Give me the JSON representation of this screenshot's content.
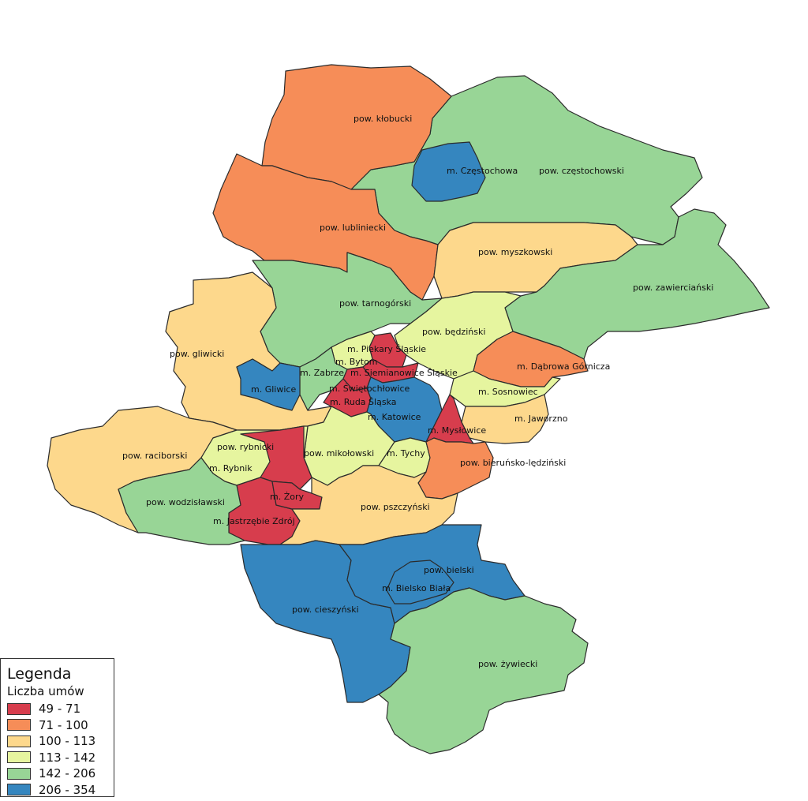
{
  "colors": {
    "c1": "#d73d4d",
    "c2": "#f68d58",
    "c3": "#fdd88c",
    "c4": "#e6f59f",
    "c5": "#98d596",
    "c6": "#3586bf"
  },
  "regions": [
    {
      "name": "pow. kłobucki",
      "cls": "c2"
    },
    {
      "name": "pow. lubliniecki",
      "cls": "c2"
    },
    {
      "name": "pow. częstochowski",
      "cls": "c5"
    },
    {
      "name": "m. Częstochowa",
      "cls": "c6"
    },
    {
      "name": "pow. myszkowski",
      "cls": "c3"
    },
    {
      "name": "pow. zawierciański",
      "cls": "c5"
    },
    {
      "name": "pow. tarnogórski",
      "cls": "c5"
    },
    {
      "name": "pow. będziński",
      "cls": "c4"
    },
    {
      "name": "pow. gliwicki",
      "cls": "c3"
    },
    {
      "name": "m. Piekary Śląskie",
      "cls": "c1"
    },
    {
      "name": "m. Bytom",
      "cls": "c4"
    },
    {
      "name": "m. Zabrze",
      "cls": "c5"
    },
    {
      "name": "m. Siemianowice Śląskie",
      "cls": "c1"
    },
    {
      "name": "m. Dąbrowa Górnicza",
      "cls": "c2"
    },
    {
      "name": "m. Gliwice",
      "cls": "c6"
    },
    {
      "name": "m. Świętochłowice",
      "cls": "c1"
    },
    {
      "name": "m. Sosnowiec",
      "cls": "c4"
    },
    {
      "name": "m. Ruda Śląska",
      "cls": "c1"
    },
    {
      "name": "m. Katowice",
      "cls": "c6"
    },
    {
      "name": "m. Jaworzno",
      "cls": "c3"
    },
    {
      "name": "m. Mysłowice",
      "cls": "c1"
    },
    {
      "name": "pow. rybnicki",
      "cls": "c4"
    },
    {
      "name": "pow. raciborski",
      "cls": "c3"
    },
    {
      "name": "pow. mikołowski",
      "cls": "c4"
    },
    {
      "name": "m. Tychy",
      "cls": "c4"
    },
    {
      "name": "pow. bieruńsko-lędziński",
      "cls": "c2"
    },
    {
      "name": "m. Rybnik",
      "cls": "c1"
    },
    {
      "name": "m. Żory",
      "cls": "c1"
    },
    {
      "name": "pow. wodzisławski",
      "cls": "c5"
    },
    {
      "name": "pow. pszczyński",
      "cls": "c3"
    },
    {
      "name": "m. Jastrzębie Zdrój",
      "cls": "c1"
    },
    {
      "name": "pow. bielski",
      "cls": "c6"
    },
    {
      "name": "m. Bielsko Biała",
      "cls": "c6"
    },
    {
      "name": "pow. cieszyński",
      "cls": "c6"
    },
    {
      "name": "pow. żywiecki",
      "cls": "c5"
    }
  ],
  "legend": {
    "title": "Legenda",
    "subtitle": "Liczba umów",
    "classes": [
      {
        "label": "49 - 71",
        "color": "#d73d4d"
      },
      {
        "label": "71 - 100",
        "color": "#f68d58"
      },
      {
        "label": "100 - 113",
        "color": "#fdd88c"
      },
      {
        "label": "113 - 142",
        "color": "#e6f59f"
      },
      {
        "label": "142 - 206",
        "color": "#98d596"
      },
      {
        "label": "206 - 354",
        "color": "#3586bf"
      }
    ]
  }
}
